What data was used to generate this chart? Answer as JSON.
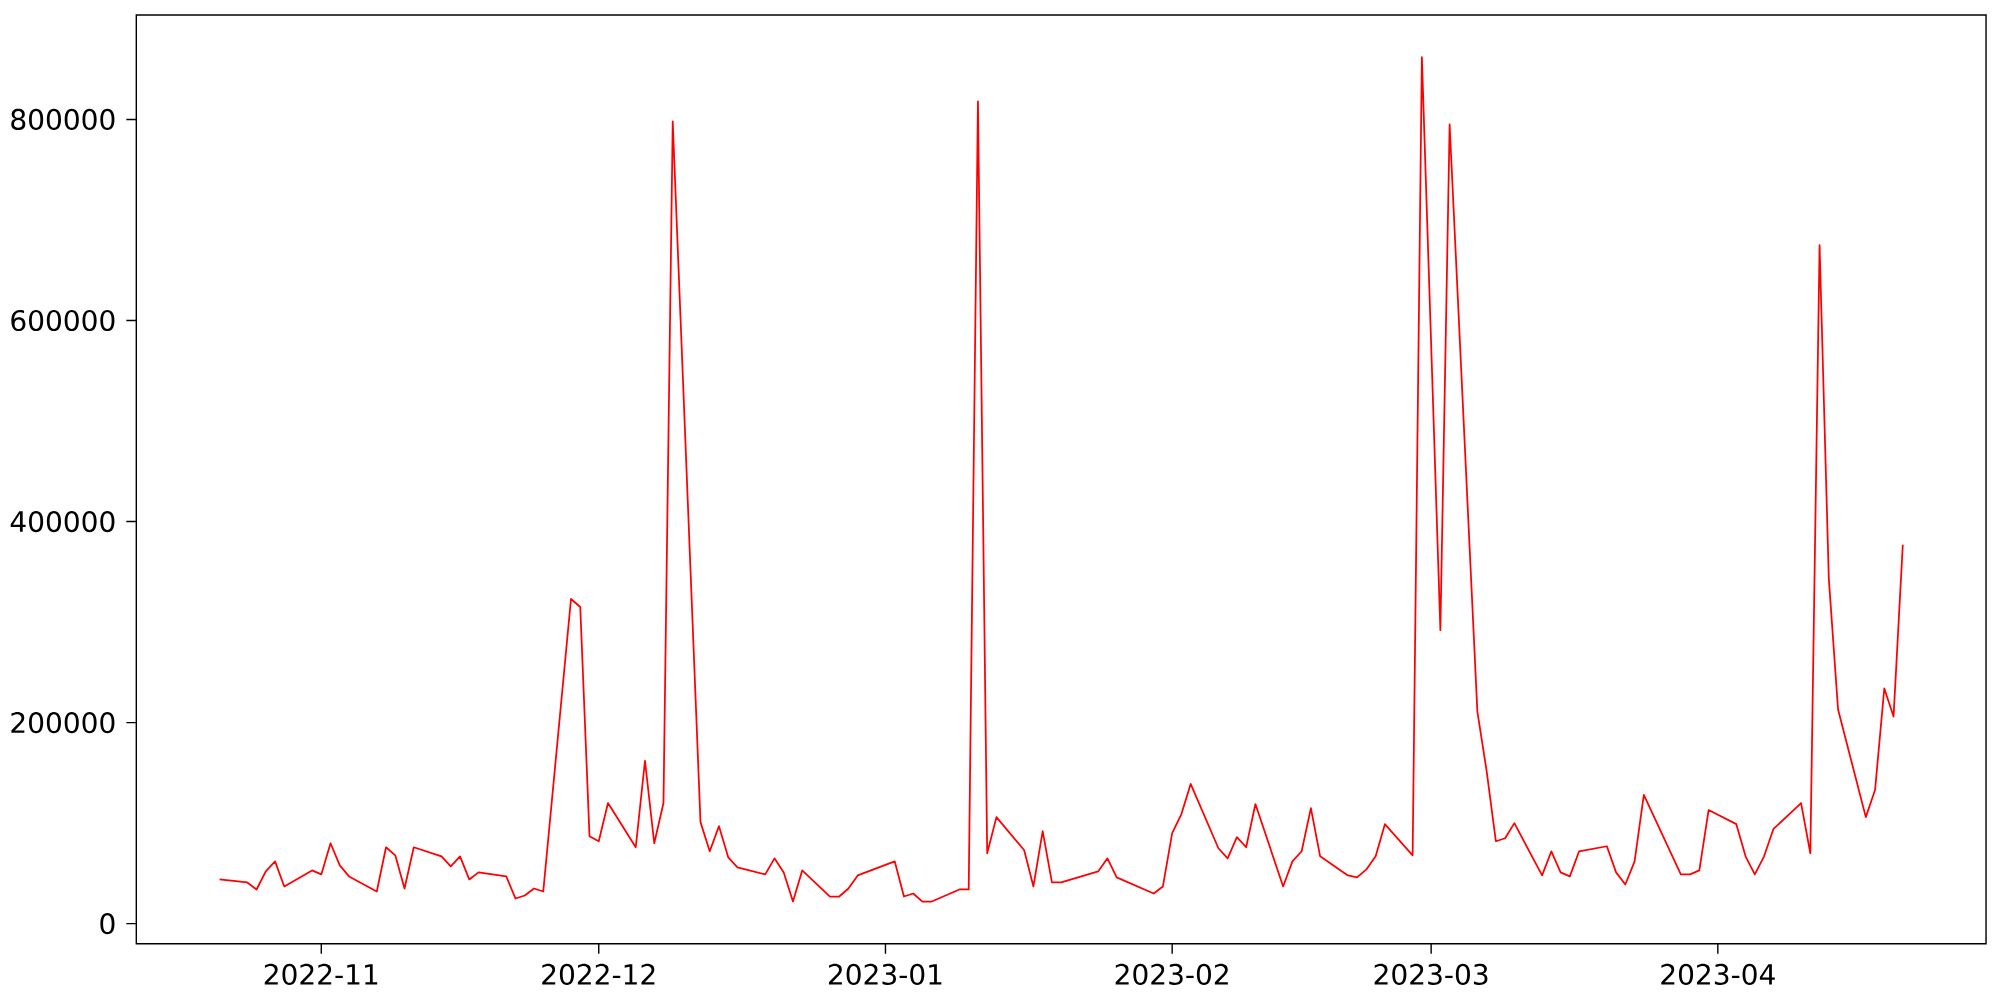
{
  "chart_data": {
    "type": "line",
    "color": "#ff0000",
    "x": [
      "2022-10-21",
      "2022-10-24",
      "2022-10-25",
      "2022-10-26",
      "2022-10-27",
      "2022-10-28",
      "2022-10-31",
      "2022-11-01",
      "2022-11-02",
      "2022-11-03",
      "2022-11-04",
      "2022-11-07",
      "2022-11-08",
      "2022-11-09",
      "2022-11-10",
      "2022-11-11",
      "2022-11-14",
      "2022-11-15",
      "2022-11-16",
      "2022-11-17",
      "2022-11-18",
      "2022-11-21",
      "2022-11-22",
      "2022-11-23",
      "2022-11-24",
      "2022-11-25",
      "2022-11-28",
      "2022-11-29",
      "2022-11-30",
      "2022-12-01",
      "2022-12-02",
      "2022-12-05",
      "2022-12-06",
      "2022-12-07",
      "2022-12-08",
      "2022-12-09",
      "2022-12-12",
      "2022-12-13",
      "2022-12-14",
      "2022-12-15",
      "2022-12-16",
      "2022-12-19",
      "2022-12-20",
      "2022-12-21",
      "2022-12-22",
      "2022-12-23",
      "2022-12-26",
      "2022-12-27",
      "2022-12-28",
      "2022-12-29",
      "2023-01-02",
      "2023-01-03",
      "2023-01-04",
      "2023-01-05",
      "2023-01-06",
      "2023-01-09",
      "2023-01-10",
      "2023-01-11",
      "2023-01-12",
      "2023-01-13",
      "2023-01-16",
      "2023-01-17",
      "2023-01-18",
      "2023-01-19",
      "2023-01-20",
      "2023-01-24",
      "2023-01-25",
      "2023-01-26",
      "2023-01-30",
      "2023-01-31",
      "2023-02-01",
      "2023-02-02",
      "2023-02-03",
      "2023-02-06",
      "2023-02-07",
      "2023-02-08",
      "2023-02-09",
      "2023-02-10",
      "2023-02-13",
      "2023-02-14",
      "2023-02-15",
      "2023-02-16",
      "2023-02-17",
      "2023-02-20",
      "2023-02-21",
      "2023-02-22",
      "2023-02-23",
      "2023-02-24",
      "2023-02-27",
      "2023-02-28",
      "2023-03-02",
      "2023-03-03",
      "2023-03-06",
      "2023-03-07",
      "2023-03-08",
      "2023-03-09",
      "2023-03-10",
      "2023-03-13",
      "2023-03-14",
      "2023-03-15",
      "2023-03-16",
      "2023-03-17",
      "2023-03-20",
      "2023-03-21",
      "2023-03-22",
      "2023-03-23",
      "2023-03-24",
      "2023-03-28",
      "2023-03-29",
      "2023-03-30",
      "2023-03-31",
      "2023-04-03",
      "2023-04-04",
      "2023-04-05",
      "2023-04-06",
      "2023-04-07",
      "2023-04-10",
      "2023-04-11",
      "2023-04-12",
      "2023-04-13",
      "2023-04-14",
      "2023-04-17",
      "2023-04-18",
      "2023-04-19",
      "2023-04-20",
      "2023-04-21"
    ],
    "values": [
      44000,
      41000,
      34000,
      52000,
      62000,
      37000,
      53000,
      49000,
      80000,
      58000,
      47000,
      32000,
      76000,
      68000,
      35000,
      76000,
      67000,
      57000,
      67000,
      44000,
      51000,
      47000,
      25000,
      28000,
      35000,
      32000,
      323000,
      315000,
      87000,
      82000,
      120000,
      76000,
      162000,
      80000,
      120000,
      798000,
      101000,
      72000,
      97000,
      66000,
      56000,
      49000,
      65000,
      51000,
      22000,
      53000,
      27000,
      27000,
      35000,
      48000,
      62000,
      27000,
      30000,
      22000,
      22000,
      34000,
      34000,
      818000,
      70000,
      106000,
      73000,
      37000,
      92000,
      41000,
      41000,
      52000,
      65000,
      46000,
      30000,
      37000,
      90000,
      109000,
      139000,
      75000,
      65000,
      86000,
      76000,
      119000,
      37000,
      62000,
      72000,
      115000,
      67000,
      48000,
      46000,
      54000,
      67000,
      99000,
      68000,
      862000,
      292000,
      795000,
      211000,
      152000,
      82000,
      85000,
      100000,
      48000,
      72000,
      51000,
      47000,
      72000,
      77000,
      51000,
      39000,
      62000,
      128000,
      49000,
      49000,
      53000,
      113000,
      99000,
      67000,
      49000,
      67000,
      94000,
      120000,
      70000,
      675000,
      343000,
      213000,
      106000,
      133000,
      234000,
      206000,
      377000
    ],
    "xlim": [
      "2022-10-12",
      "2023-04-30"
    ],
    "ylim": [
      -20000,
      904000
    ],
    "xticks": [
      {
        "value": "2022-11-01",
        "label": "2022-11"
      },
      {
        "value": "2022-12-01",
        "label": "2022-12"
      },
      {
        "value": "2023-01-01",
        "label": "2023-01"
      },
      {
        "value": "2023-02-01",
        "label": "2023-02"
      },
      {
        "value": "2023-03-01",
        "label": "2023-03"
      },
      {
        "value": "2023-04-01",
        "label": "2023-04"
      }
    ],
    "yticks": [
      0,
      200000,
      400000,
      600000,
      800000
    ]
  }
}
